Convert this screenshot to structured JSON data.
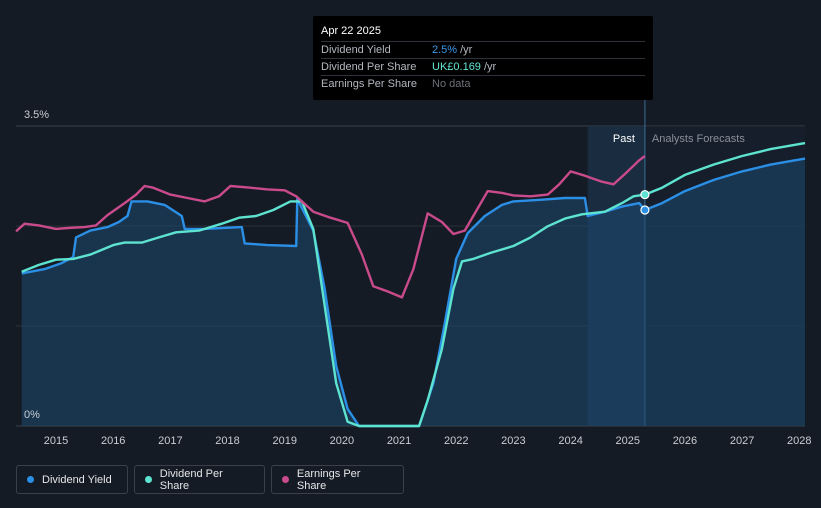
{
  "tooltip": {
    "date": "Apr 22 2025",
    "rows": [
      {
        "label": "Dividend Yield",
        "value": "2.5%",
        "unit": "/yr",
        "color": "#3b9ae8"
      },
      {
        "label": "Dividend Per Share",
        "value": "UK£0.169",
        "unit": "/yr",
        "color": "#62e6d2"
      },
      {
        "label": "Earnings Per Share",
        "value": "No data",
        "unit": "",
        "color": "#6b7078"
      }
    ]
  },
  "labels": {
    "past": "Past",
    "forecast": "Analysts Forecasts"
  },
  "legend": [
    {
      "label": "Dividend Yield",
      "color": "#2b8fe6"
    },
    {
      "label": "Dividend Per Share",
      "color": "#5de3cf"
    },
    {
      "label": "Earnings Per Share",
      "color": "#c94b8c"
    }
  ],
  "colors": {
    "background": "#151b24",
    "dividend_yield": "#2b8fe6",
    "dividend_per_share": "#5de3cf",
    "earnings_per_share": "#c94b8c",
    "forecast_region": "#1a3450"
  },
  "chart_data": {
    "type": "line",
    "y_tick_labels": [
      "3.5%",
      "0%"
    ],
    "ylim": [
      0,
      3.5
    ],
    "x_tick_labels": [
      "2015",
      "2016",
      "2017",
      "2018",
      "2019",
      "2020",
      "2021",
      "2022",
      "2023",
      "2024",
      "2025",
      "2026",
      "2027",
      "2028"
    ],
    "xlim": [
      2014.3,
      2028.1
    ],
    "past_range": [
      2024.3,
      2025.3
    ],
    "grid": true,
    "series": [
      {
        "name": "Dividend Yield",
        "area": true,
        "points": [
          [
            2014.4,
            1.78
          ],
          [
            2014.8,
            1.83
          ],
          [
            2015.1,
            1.9
          ],
          [
            2015.3,
            1.97
          ],
          [
            2015.35,
            2.2
          ],
          [
            2015.6,
            2.28
          ],
          [
            2015.9,
            2.32
          ],
          [
            2016.1,
            2.38
          ],
          [
            2016.25,
            2.45
          ],
          [
            2016.32,
            2.62
          ],
          [
            2016.6,
            2.62
          ],
          [
            2016.9,
            2.58
          ],
          [
            2017.2,
            2.45
          ],
          [
            2017.25,
            2.3
          ],
          [
            2017.6,
            2.3
          ],
          [
            2017.9,
            2.31
          ],
          [
            2018.25,
            2.32
          ],
          [
            2018.3,
            2.13
          ],
          [
            2018.7,
            2.11
          ],
          [
            2019.2,
            2.1
          ],
          [
            2019.22,
            2.65
          ],
          [
            2019.5,
            2.28
          ],
          [
            2019.7,
            1.6
          ],
          [
            2019.9,
            0.7
          ],
          [
            2020.1,
            0.2
          ],
          [
            2020.3,
            0
          ],
          [
            2021.35,
            0
          ],
          [
            2021.6,
            0.5
          ],
          [
            2021.8,
            1.2
          ],
          [
            2022.0,
            1.95
          ],
          [
            2022.2,
            2.25
          ],
          [
            2022.5,
            2.45
          ],
          [
            2022.8,
            2.58
          ],
          [
            2023.0,
            2.62
          ],
          [
            2023.5,
            2.64
          ],
          [
            2023.9,
            2.66
          ],
          [
            2024.25,
            2.66
          ],
          [
            2024.3,
            2.45
          ],
          [
            2024.6,
            2.5
          ],
          [
            2024.9,
            2.56
          ],
          [
            2025.2,
            2.6
          ],
          [
            2025.3,
            2.52
          ]
        ]
      },
      {
        "name": "Dividend Yield forecast",
        "area": true,
        "points": [
          [
            2025.3,
            2.52
          ],
          [
            2025.6,
            2.6
          ],
          [
            2026.0,
            2.74
          ],
          [
            2026.5,
            2.87
          ],
          [
            2027.0,
            2.97
          ],
          [
            2027.5,
            3.05
          ],
          [
            2028.1,
            3.12
          ]
        ]
      },
      {
        "name": "Dividend Per Share",
        "area": false,
        "points": [
          [
            2014.4,
            1.8
          ],
          [
            2014.7,
            1.88
          ],
          [
            2015.0,
            1.94
          ],
          [
            2015.3,
            1.95
          ],
          [
            2015.6,
            2.0
          ],
          [
            2016.0,
            2.11
          ],
          [
            2016.2,
            2.14
          ],
          [
            2016.5,
            2.14
          ],
          [
            2016.8,
            2.2
          ],
          [
            2017.1,
            2.26
          ],
          [
            2017.5,
            2.28
          ],
          [
            2017.9,
            2.36
          ],
          [
            2018.2,
            2.43
          ],
          [
            2018.5,
            2.45
          ],
          [
            2018.8,
            2.52
          ],
          [
            2019.1,
            2.62
          ],
          [
            2019.3,
            2.62
          ],
          [
            2019.5,
            2.3
          ],
          [
            2019.7,
            1.4
          ],
          [
            2019.9,
            0.5
          ],
          [
            2020.1,
            0.05
          ],
          [
            2020.3,
            0
          ],
          [
            2021.35,
            0
          ],
          [
            2021.5,
            0.3
          ],
          [
            2021.75,
            0.9
          ],
          [
            2021.95,
            1.6
          ],
          [
            2022.1,
            1.92
          ],
          [
            2022.3,
            1.95
          ],
          [
            2022.6,
            2.02
          ],
          [
            2023.0,
            2.1
          ],
          [
            2023.3,
            2.2
          ],
          [
            2023.6,
            2.33
          ],
          [
            2023.9,
            2.42
          ],
          [
            2024.2,
            2.47
          ],
          [
            2024.6,
            2.5
          ],
          [
            2024.9,
            2.6
          ],
          [
            2025.1,
            2.68
          ],
          [
            2025.3,
            2.7
          ]
        ]
      },
      {
        "name": "Dividend Per Share forecast",
        "area": false,
        "points": [
          [
            2025.3,
            2.7
          ],
          [
            2025.6,
            2.78
          ],
          [
            2026.0,
            2.93
          ],
          [
            2026.5,
            3.05
          ],
          [
            2027.0,
            3.15
          ],
          [
            2027.5,
            3.23
          ],
          [
            2028.1,
            3.3
          ]
        ]
      },
      {
        "name": "Earnings Per Share",
        "area": false,
        "points": [
          [
            2014.3,
            2.27
          ],
          [
            2014.45,
            2.36
          ],
          [
            2014.7,
            2.34
          ],
          [
            2015.0,
            2.3
          ],
          [
            2015.2,
            2.31
          ],
          [
            2015.5,
            2.32
          ],
          [
            2015.7,
            2.34
          ],
          [
            2015.9,
            2.46
          ],
          [
            2016.2,
            2.6
          ],
          [
            2016.4,
            2.7
          ],
          [
            2016.55,
            2.8
          ],
          [
            2016.7,
            2.78
          ],
          [
            2017.0,
            2.7
          ],
          [
            2017.3,
            2.66
          ],
          [
            2017.6,
            2.62
          ],
          [
            2017.85,
            2.68
          ],
          [
            2018.05,
            2.8
          ],
          [
            2018.4,
            2.78
          ],
          [
            2018.7,
            2.76
          ],
          [
            2019.0,
            2.75
          ],
          [
            2019.2,
            2.68
          ],
          [
            2019.5,
            2.5
          ],
          [
            2019.8,
            2.43
          ],
          [
            2020.1,
            2.37
          ],
          [
            2020.35,
            2.0
          ],
          [
            2020.55,
            1.63
          ],
          [
            2020.8,
            1.57
          ],
          [
            2021.05,
            1.5
          ],
          [
            2021.25,
            1.83
          ],
          [
            2021.5,
            2.48
          ],
          [
            2021.75,
            2.38
          ],
          [
            2021.95,
            2.24
          ],
          [
            2022.15,
            2.28
          ],
          [
            2022.55,
            2.74
          ],
          [
            2022.8,
            2.72
          ],
          [
            2023.0,
            2.69
          ],
          [
            2023.3,
            2.68
          ],
          [
            2023.6,
            2.7
          ],
          [
            2023.8,
            2.82
          ],
          [
            2024.0,
            2.97
          ],
          [
            2024.25,
            2.92
          ],
          [
            2024.55,
            2.85
          ],
          [
            2024.75,
            2.82
          ],
          [
            2024.95,
            2.94
          ],
          [
            2025.2,
            3.1
          ],
          [
            2025.3,
            3.15
          ]
        ]
      }
    ],
    "highlight_points": [
      {
        "series": "Dividend Yield",
        "x": 2025.3,
        "y": 2.52
      },
      {
        "series": "Dividend Per Share",
        "x": 2025.3,
        "y": 2.7
      }
    ]
  }
}
